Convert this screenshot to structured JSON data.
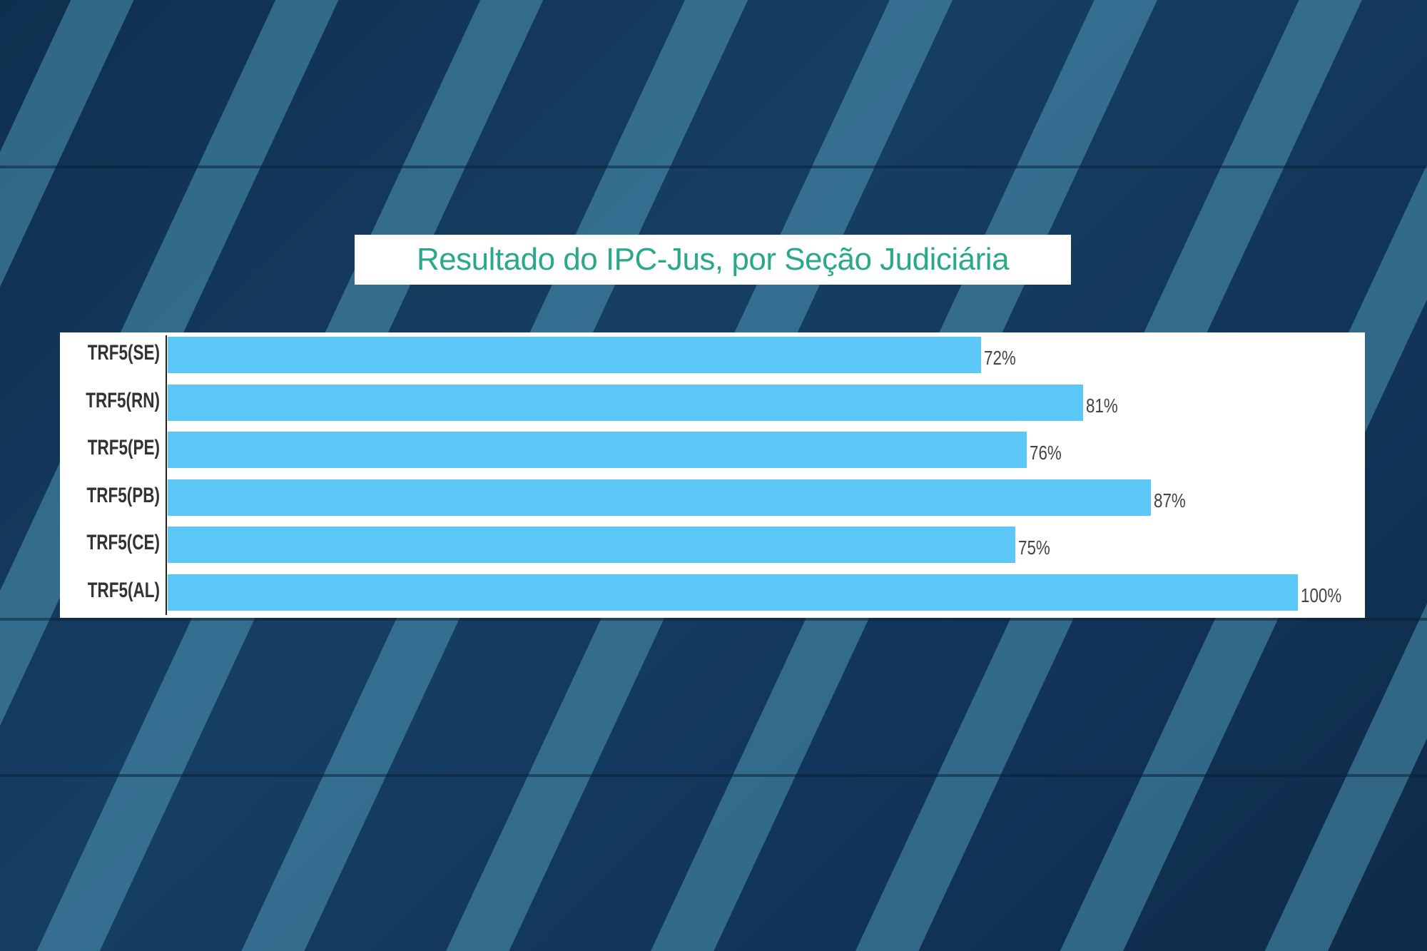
{
  "chart_data": {
    "type": "bar",
    "orientation": "horizontal",
    "title": "Resultado do IPC-Jus, por Seção Judiciária",
    "categories": [
      "TRF5(SE)",
      "TRF5(RN)",
      "TRF5(PE)",
      "TRF5(PB)",
      "TRF5(CE)",
      "TRF5(AL)"
    ],
    "values": [
      72,
      81,
      76,
      87,
      75,
      100
    ],
    "value_labels": [
      "72%",
      "81%",
      "76%",
      "87%",
      "75%",
      "100%"
    ],
    "xlim": [
      0,
      100
    ],
    "grid": false,
    "bar_color": "#5bc8f8",
    "title_color": "#2aa889"
  }
}
